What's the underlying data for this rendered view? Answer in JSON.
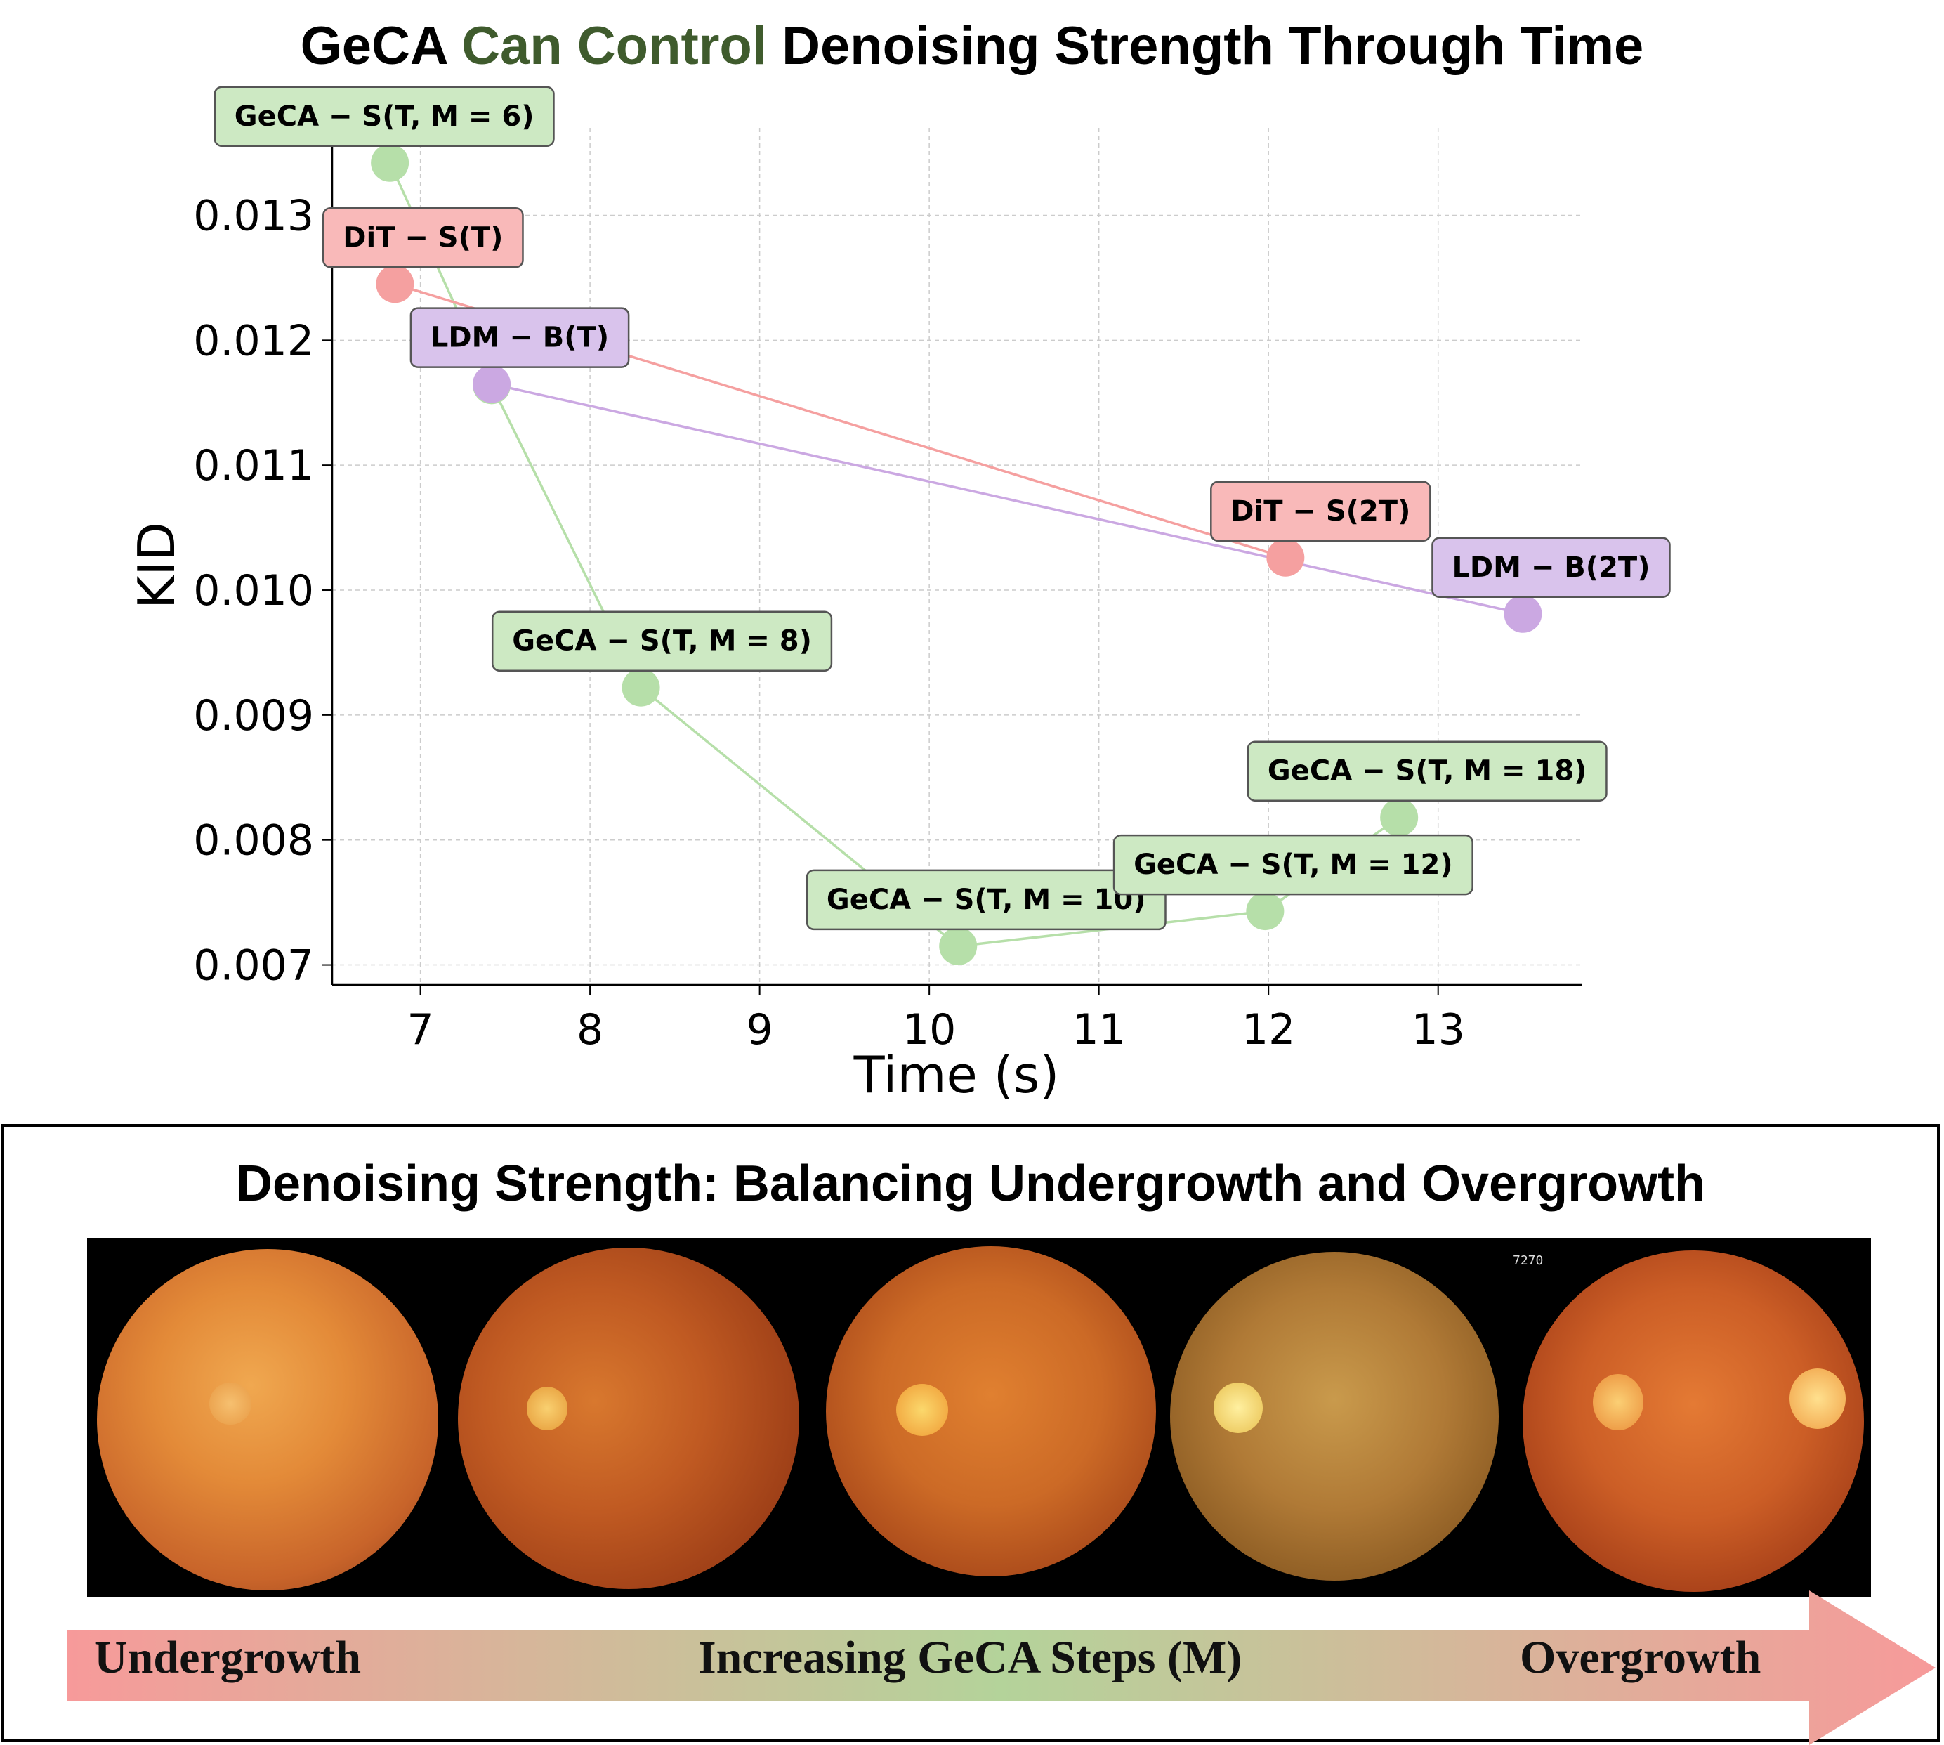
{
  "title": {
    "part1": "GeCA ",
    "part2": "Can Control",
    "part3": " Denoising Strength Through Time",
    "accent_color": "#3f5b2d"
  },
  "chart_data": {
    "type": "line",
    "xlabel": "Time (s)",
    "ylabel": "KID",
    "xlim": [
      6.48,
      13.85
    ],
    "ylim": [
      0.00684,
      0.0137
    ],
    "xticks": [
      7,
      8,
      9,
      10,
      11,
      12,
      13
    ],
    "yticks": [
      0.007,
      0.008,
      0.009,
      0.01,
      0.011,
      0.012,
      0.013
    ],
    "ytick_labels": [
      "0.007",
      "0.008",
      "0.009",
      "0.010",
      "0.011",
      "0.012",
      "0.013"
    ],
    "grid": true,
    "series": [
      {
        "color": "#b6dfa9",
        "label_bg": "#cde9c3",
        "points": [
          {
            "x": 6.82,
            "y": 0.01342,
            "label": "GeCA − S(T, M = 6)"
          },
          {
            "x": 7.42,
            "y": 0.01164,
            "label": ""
          },
          {
            "x": 8.3,
            "y": 0.00922,
            "label": "GeCA − S(T, M = 8)"
          },
          {
            "x": 10.17,
            "y": 0.00715,
            "label": "GeCA − S(T, M = 10)"
          },
          {
            "x": 11.98,
            "y": 0.00743,
            "label": "GeCA − S(T, M = 12)"
          },
          {
            "x": 12.77,
            "y": 0.00818,
            "label": "GeCA − S(T, M = 18)"
          }
        ]
      },
      {
        "color": "#f5a0a0",
        "label_bg": "#f9b9b9",
        "points": [
          {
            "x": 6.85,
            "y": 0.01245,
            "label": "DiT − S(T)"
          },
          {
            "x": 12.1,
            "y": 0.01026,
            "label": "DiT − S(2T)"
          }
        ]
      },
      {
        "color": "#cba8e2",
        "label_bg": "#d9c3ec",
        "points": [
          {
            "x": 7.42,
            "y": 0.01165,
            "label": "LDM − B(T)"
          },
          {
            "x": 13.5,
            "y": 0.00981,
            "label": "LDM − B(2T)"
          }
        ]
      }
    ]
  },
  "panel": {
    "title": "Denoising Strength: Balancing Undergrowth and Overgrowth",
    "images": [
      {
        "name": "fundus-1"
      },
      {
        "name": "fundus-2"
      },
      {
        "name": "fundus-3"
      },
      {
        "name": "fundus-4"
      },
      {
        "name": "fundus-5",
        "overlay_text": "7270"
      }
    ],
    "arrow": {
      "left_label": "Undergrowth",
      "center_label": "Increasing GeCA Steps (M)",
      "right_label": "Overgrowth",
      "colors": [
        "#f79a9a",
        "#b4d39a",
        "#f79a9a"
      ]
    }
  }
}
